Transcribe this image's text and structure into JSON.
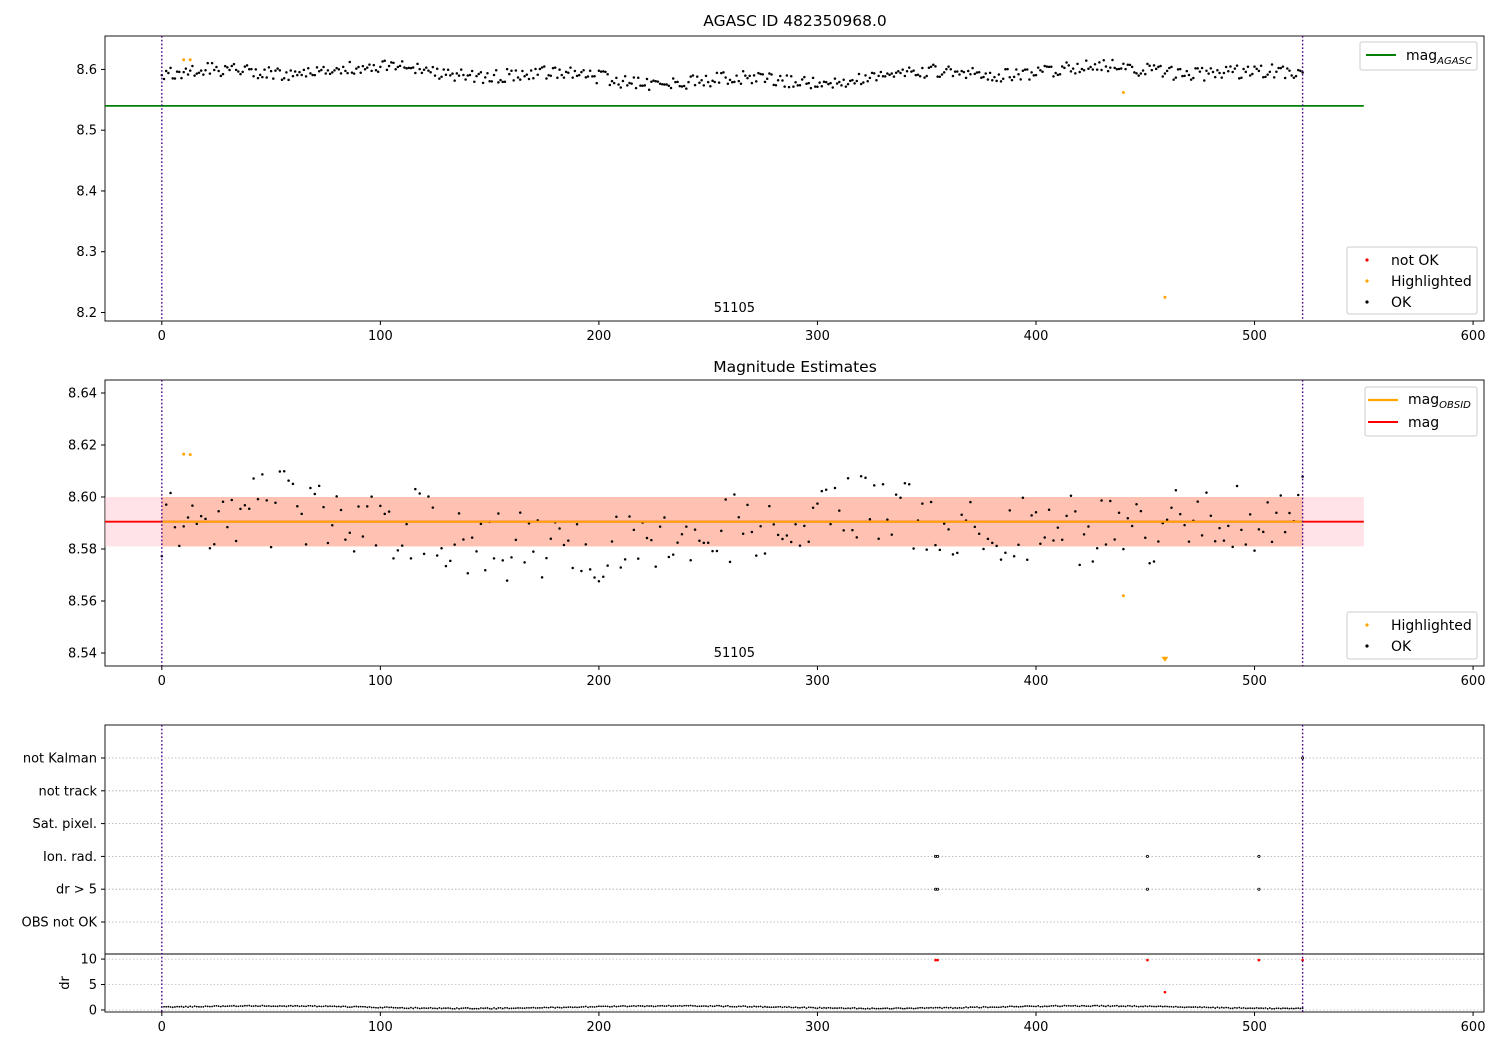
{
  "chart_data": [
    {
      "type": "scatter",
      "title": "AGASC ID 482350968.0",
      "xlim": [
        -26,
        605
      ],
      "ylim": [
        8.186,
        8.655
      ],
      "x_ticks": [
        0,
        100,
        200,
        300,
        400,
        500,
        600
      ],
      "y_ticks": [
        8.2,
        8.3,
        8.4,
        8.5,
        8.6
      ],
      "obsid_label": "51105",
      "obsid_label_x": 262,
      "obsid_bounds": [
        0,
        522
      ],
      "reference_lines": [
        {
          "name": "mag_AGASC",
          "value": 8.54,
          "x_range": [
            -26,
            550
          ],
          "color": "#008000"
        }
      ],
      "series": [
        {
          "name": "OK",
          "color": "#000000",
          "trend": "noisy around 8.59, per 1 sample",
          "x_range": [
            0,
            522
          ],
          "n_points": 523
        },
        {
          "name": "Highlighted",
          "color": "#ffa500",
          "points": [
            [
              10,
              8.616
            ],
            [
              13,
              8.616
            ],
            [
              440,
              8.562
            ],
            [
              459,
              8.225
            ]
          ]
        },
        {
          "name": "not OK",
          "color": "#ff0000",
          "points": []
        }
      ],
      "legends": [
        {
          "placement": "upper right",
          "entries": [
            {
              "label": "mag",
              "subscript": "AGASC",
              "kind": "line",
              "color": "#008000"
            }
          ]
        },
        {
          "placement": "lower right",
          "entries": [
            {
              "label": "not OK",
              "kind": "marker",
              "color": "#ff0000"
            },
            {
              "label": "Highlighted",
              "kind": "marker",
              "color": "#ffa500"
            },
            {
              "label": "OK",
              "kind": "marker",
              "color": "#000000"
            }
          ]
        }
      ]
    },
    {
      "type": "scatter",
      "title": "Magnitude Estimates",
      "xlim": [
        -26,
        605
      ],
      "ylim": [
        8.535,
        8.645
      ],
      "x_ticks": [
        0,
        100,
        200,
        300,
        400,
        500,
        600
      ],
      "y_ticks": [
        8.54,
        8.56,
        8.58,
        8.6,
        8.62,
        8.64
      ],
      "obsid_label": "51105",
      "obsid_label_x": 262,
      "obsid_bounds": [
        0,
        522
      ],
      "reference_lines": [
        {
          "name": "mag",
          "value": 8.5905,
          "x_range": [
            -26,
            550
          ],
          "color": "#ff0000"
        },
        {
          "name": "mag_OBSID",
          "value": 8.5905,
          "x_range": [
            0,
            522
          ],
          "color": "#ffa500"
        }
      ],
      "bands": [
        {
          "name": "mag range",
          "y_range": [
            8.581,
            8.6
          ],
          "x_range": [
            -26,
            550
          ],
          "color": "#ffc0cb"
        },
        {
          "name": "mag_OBSID range",
          "y_range": [
            8.581,
            8.6
          ],
          "x_range": [
            0,
            522
          ],
          "color": "#ffa07a"
        }
      ],
      "series": [
        {
          "name": "OK",
          "color": "#000000",
          "trend": "scattered 8.566 to 8.614, every 2 samples",
          "x_range": [
            0,
            522
          ]
        },
        {
          "name": "Highlighted",
          "color": "#ffa500",
          "points": [
            [
              10,
              8.6165
            ],
            [
              13,
              8.6163
            ],
            [
              440,
              8.562
            ],
            [
              459,
              8.537
            ]
          ]
        }
      ],
      "legends": [
        {
          "placement": "upper right",
          "entries": [
            {
              "label": "mag",
              "subscript": "OBSID",
              "kind": "line",
              "color": "#ffa500"
            },
            {
              "label": "mag",
              "kind": "line",
              "color": "#ff0000"
            }
          ]
        },
        {
          "placement": "lower right",
          "entries": [
            {
              "label": "Highlighted",
              "kind": "marker",
              "color": "#ffa500"
            },
            {
              "label": "OK",
              "kind": "marker",
              "color": "#000000"
            }
          ]
        }
      ]
    },
    {
      "type": "scatter",
      "title": "",
      "xlim": [
        -26,
        605
      ],
      "x_ticks": [
        0,
        100,
        200,
        300,
        400,
        500,
        600
      ],
      "flag_rows": [
        "not Kalman",
        "not track",
        "Sat. pixel.",
        "Ion. rad.",
        "dr > 5",
        "OBS not OK"
      ],
      "flag_points": [
        {
          "row": "not Kalman",
          "x": [
            522
          ]
        },
        {
          "row": "Ion. rad.",
          "x": [
            354,
            355,
            451,
            502
          ]
        },
        {
          "row": "dr > 5",
          "x": [
            354,
            355,
            451,
            502
          ]
        }
      ],
      "dr": {
        "ylabel": "dr",
        "ylim": [
          -0.4,
          11
        ],
        "y_ticks": [
          0,
          5,
          10
        ],
        "trend": "near 0.3 to 0.9 for all samples",
        "outliers": [
          [
            354,
            9.8
          ],
          [
            355,
            9.8
          ],
          [
            451,
            9.8
          ],
          [
            459,
            3.5
          ],
          [
            502,
            9.8
          ],
          [
            522,
            9.8
          ]
        ]
      },
      "obsid_bounds": [
        0,
        522
      ]
    }
  ]
}
